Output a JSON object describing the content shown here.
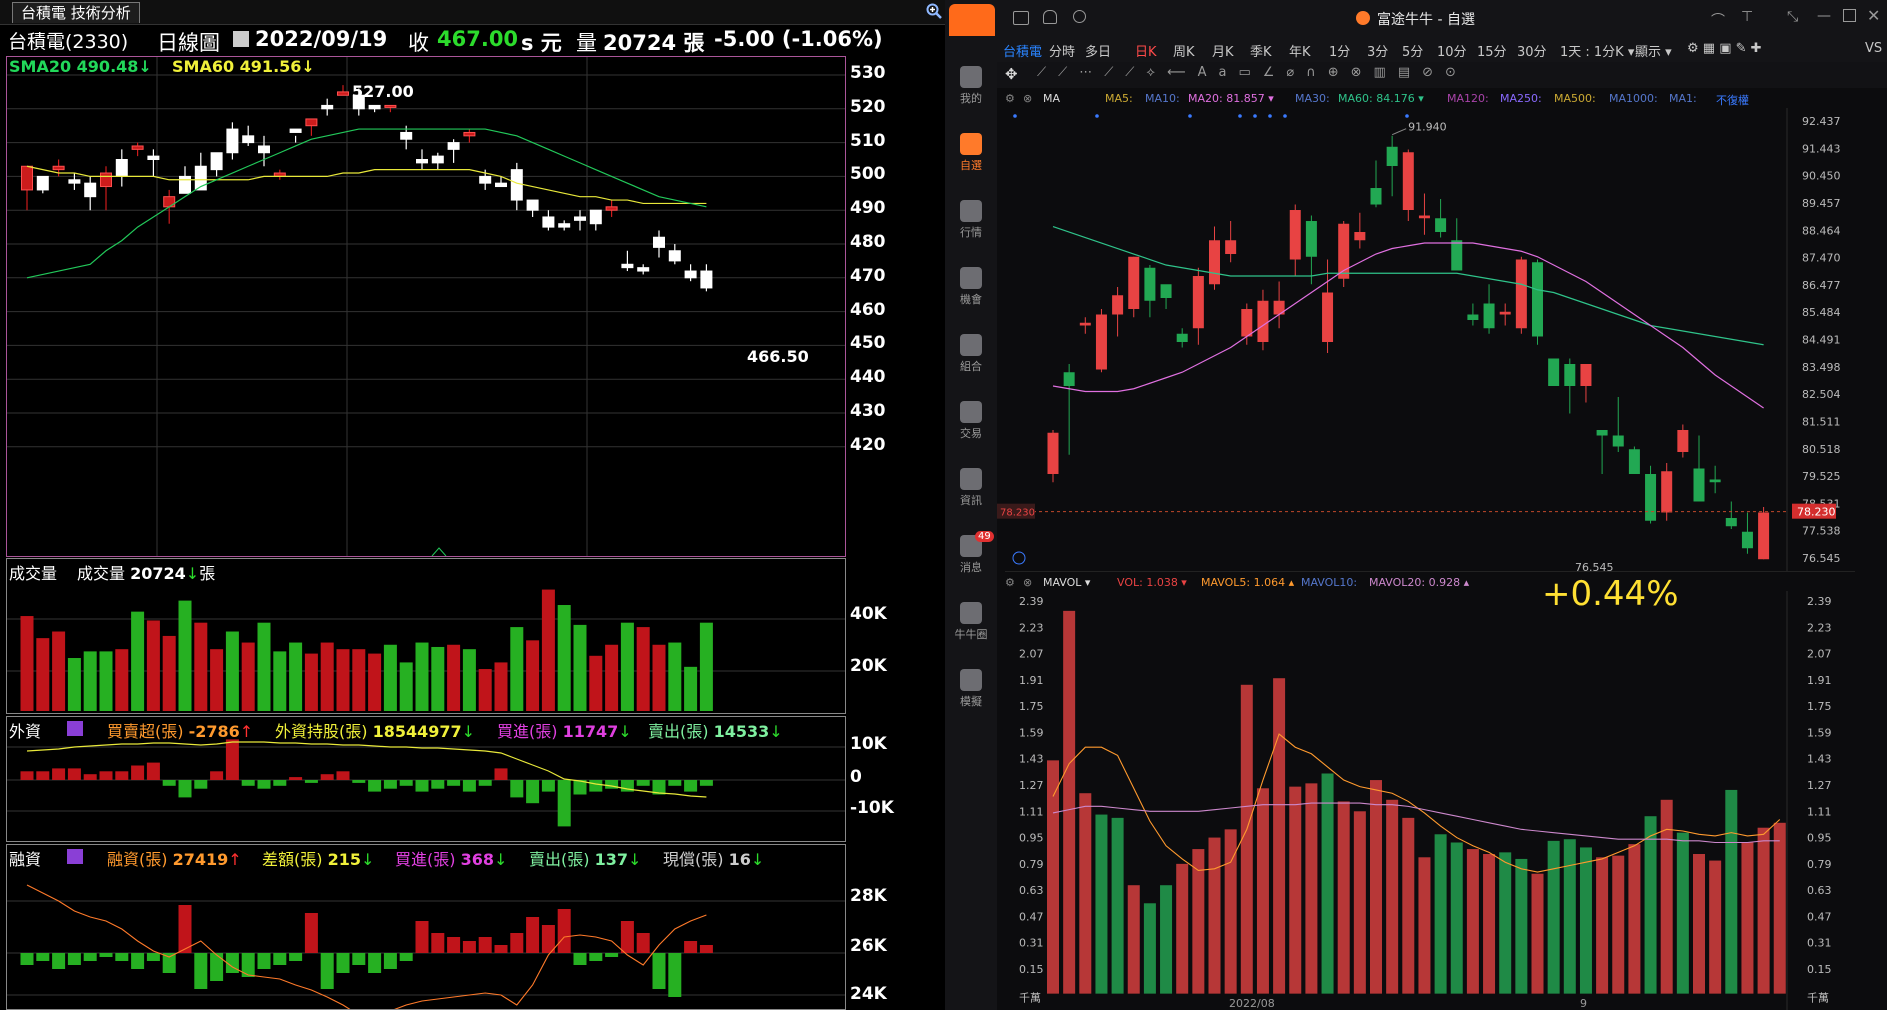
{
  "left_app": {
    "tab_title": "台積電 技術分析",
    "header": {
      "name": "台積電(2330)",
      "period": "日線圖",
      "date": "2022/09/19",
      "close_label": "收",
      "close": "467.00",
      "unit_s": "s 元",
      "vol_label": "量",
      "volume": "20724 張",
      "change": "-5.00 (-1.06%)"
    },
    "price_panel": {
      "sma20_label": "SMA20 490.48",
      "sma60_label": "SMA60 491.56",
      "high_label": "527.00",
      "low_label": "466.50",
      "y_axis": [
        "530",
        "520",
        "510",
        "500",
        "490",
        "480",
        "470",
        "460",
        "450",
        "440",
        "430",
        "420"
      ]
    },
    "volume_panel": {
      "title": "成交量",
      "vol_text": "成交量",
      "vol_value": "20724",
      "vol_unit": "張",
      "y_axis": [
        "40K",
        "20K"
      ]
    },
    "foreign_panel": {
      "title": "外資",
      "net_label": "買賣超(張)",
      "net_value": "-2786",
      "hold_label": "外資持股(張)",
      "hold_value": "18544977",
      "buy_label": "買進(張)",
      "buy_value": "11747",
      "sell_label": "賣出(張)",
      "sell_value": "14533",
      "y_axis": [
        "10K",
        "0",
        "-10K"
      ]
    },
    "margin_panel": {
      "title": "融資",
      "margin_label": "融資(張)",
      "margin_value": "27419",
      "diff_label": "差額(張)",
      "diff_value": "215",
      "buy_label": "買進(張)",
      "buy_value": "368",
      "sell_label": "賣出(張)",
      "sell_value": "137",
      "repay_label": "現償(張)",
      "repay_value": "16",
      "y_axis": [
        "28K",
        "26K",
        "24K"
      ]
    },
    "colors": {
      "up": "#cc1c1c",
      "down": "#22a82a",
      "flat": "#ffffff",
      "sma20": "#22c85a",
      "sma60": "#e8e83a"
    }
  },
  "right_app": {
    "window_title": "富途牛牛 - 自選",
    "sidebar": [
      {
        "label": "我的",
        "icon": "person-icon"
      },
      {
        "label": "自選",
        "icon": "chart-bar-icon",
        "active": true
      },
      {
        "label": "行情",
        "icon": "trend-icon"
      },
      {
        "label": "機會",
        "icon": "funnel-icon"
      },
      {
        "label": "組合",
        "icon": "pie-icon"
      },
      {
        "label": "交易",
        "icon": "trade-icon"
      },
      {
        "label": "資訊",
        "icon": "news-icon"
      },
      {
        "label": "消息",
        "icon": "message-icon",
        "badge": "49"
      },
      {
        "label": "牛牛圈",
        "icon": "community-icon"
      },
      {
        "label": "模擬",
        "icon": "simulate-icon"
      }
    ],
    "toolbar": {
      "stock": "台積電",
      "periods": [
        "分時",
        "多日",
        "日K",
        "周K",
        "月K",
        "季K",
        "年K",
        "1分",
        "3分",
        "5分",
        "10分",
        "15分",
        "30分"
      ],
      "active_period": "日K",
      "interval": "1天 : 1分K",
      "display": "顯示",
      "vs": "VS FI"
    },
    "ma_bar": {
      "ma": "MA",
      "ma5": "MA5:",
      "ma10": "MA10:",
      "ma20": "MA20: 81.857",
      "ma30": "MA30:",
      "ma60": "MA60: 84.176",
      "ma120": "MA120:",
      "ma250": "MA250:",
      "ma500": "MA500:",
      "ma1000": "MA1000:",
      "ma1": "MA1:",
      "adjust": "不復權"
    },
    "price_axis": [
      "92.437",
      "91.443",
      "90.450",
      "89.457",
      "88.464",
      "87.470",
      "86.477",
      "85.484",
      "84.491",
      "83.498",
      "82.504",
      "81.511",
      "80.518",
      "79.525",
      "78.531",
      "77.538",
      "76.545"
    ],
    "current_price": "78.230",
    "high_label": "91.940",
    "low_label": "76.545",
    "vol_bar": {
      "mavol": "MAVOL",
      "vol": "VOL: 1.038",
      "mavol5": "MAVOL5: 1.064",
      "mavol10": "MAVOL10:",
      "mavol20": "MAVOL20: 0.928"
    },
    "change_big": "+0.44%",
    "vol_axis": [
      "2.39",
      "2.23",
      "2.07",
      "1.91",
      "1.75",
      "1.59",
      "1.43",
      "1.27",
      "1.11",
      "0.95",
      "0.79",
      "0.63",
      "0.47",
      "0.31",
      "0.15"
    ],
    "vol_unit": "千萬",
    "x_labels": [
      "2022/08",
      "9"
    ],
    "colors": {
      "up": "#e84343",
      "down": "#22a853",
      "ma20": "#e070e0",
      "ma60": "#2fc38a",
      "mavol5": "#ff9a2e",
      "mavol20": "#cc88cc"
    }
  }
}
